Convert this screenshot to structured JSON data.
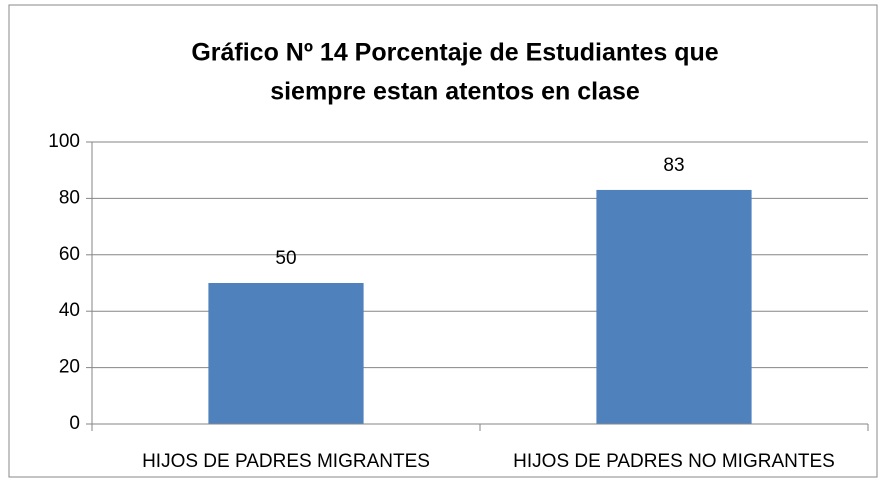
{
  "chart_data": {
    "type": "bar",
    "title": [
      "Gráfico Nº 14 Porcentaje de Estudiantes que",
      "siempre estan atentos en clase"
    ],
    "categories": [
      "HIJOS DE PADRES MIGRANTES",
      "HIJOS DE PADRES NO MIGRANTES"
    ],
    "values": [
      50,
      83
    ],
    "color": "#4f81bd",
    "ylim": [
      0,
      100
    ],
    "yticks": [
      0,
      20,
      40,
      60,
      80,
      100
    ],
    "grid": true
  }
}
